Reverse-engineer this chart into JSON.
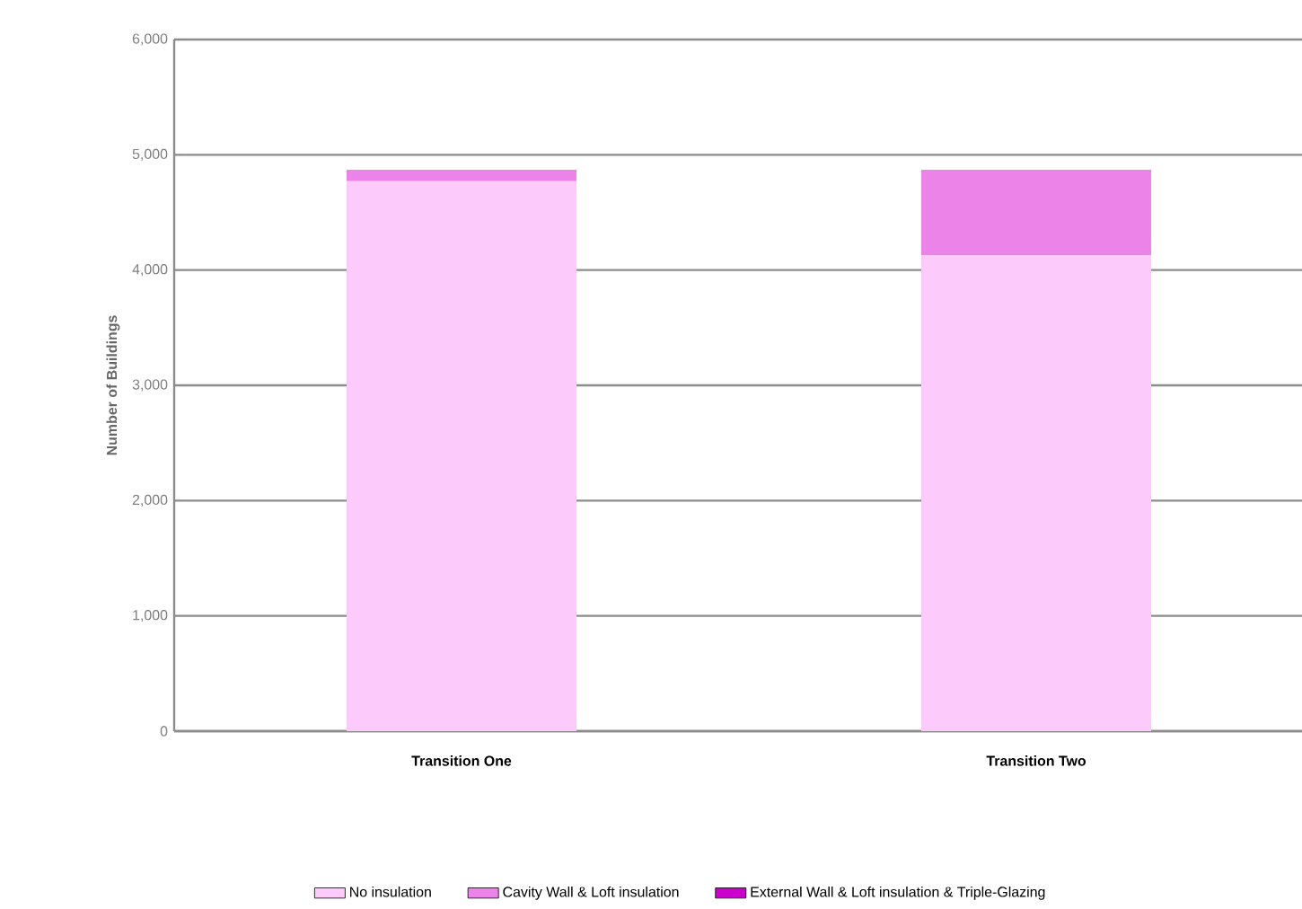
{
  "chart_data": {
    "type": "bar",
    "stacked": true,
    "ylabel": "Number of Buildings",
    "categories": [
      "Transition One",
      "Transition Two"
    ],
    "series": [
      {
        "name": "No insulation",
        "color": "#fccbfc",
        "values": [
          4770,
          4130
        ]
      },
      {
        "name": "Cavity Wall & Loft insulation",
        "color": "#ec83e8",
        "values": [
          100,
          740
        ]
      },
      {
        "name": "External Wall & Loft insulation & Triple-Glazing",
        "color": "#cc00cc",
        "values": [
          0,
          0
        ]
      }
    ],
    "ylim": [
      0,
      6000
    ],
    "yticks": [
      0,
      {
        "value": 1000,
        "label": "1,000"
      },
      {
        "value": 2000,
        "label": "2,000"
      },
      {
        "value": 3000,
        "label": "3,000"
      },
      {
        "value": 4000,
        "label": "4,000"
      },
      {
        "value": 5000,
        "label": "5,000"
      },
      {
        "value": 6000,
        "label": "6,000"
      }
    ],
    "grid": "y",
    "legend": "bottom"
  }
}
